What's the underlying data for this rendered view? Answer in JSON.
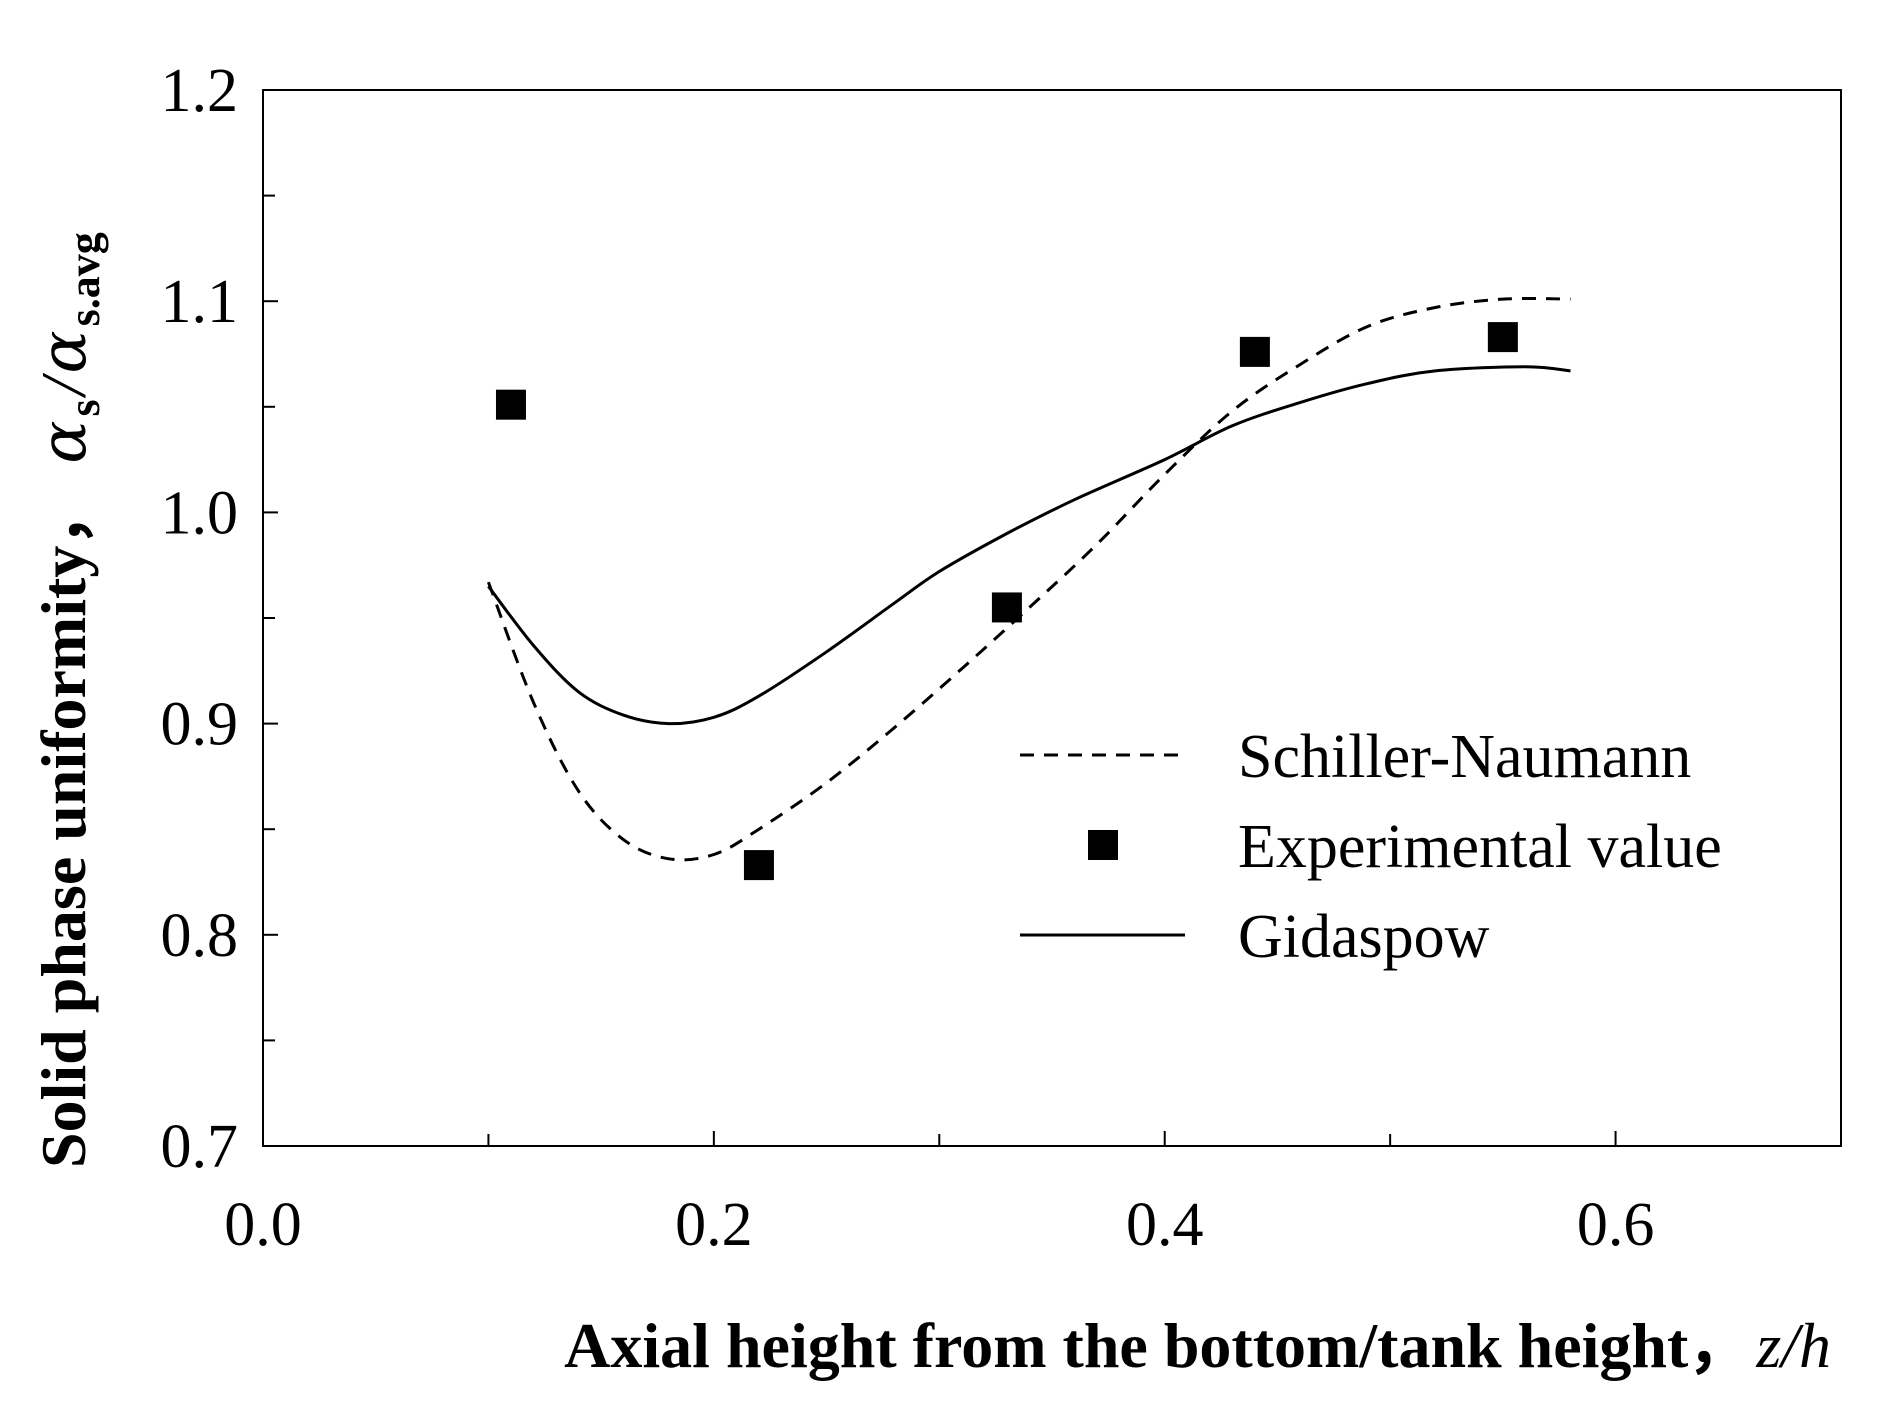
{
  "chart_data": {
    "type": "line",
    "xlabel": "Axial height from the bottom/tank height，",
    "xlabel_var": "z/h",
    "ylabel": "Solid phase uniformity，",
    "ylabel_var": {
      "alpha": "α",
      "s": "s",
      "slash": "/",
      "s_avg": "s.avg"
    },
    "xlim": [
      0.0,
      0.7
    ],
    "ylim": [
      0.7,
      1.2
    ],
    "x_ticks": [
      "0.0",
      "0.2",
      "0.4",
      "0.6"
    ],
    "x_tick_values": [
      0.0,
      0.2,
      0.4,
      0.6
    ],
    "x_minor_ticks": [
      0.1,
      0.3,
      0.5
    ],
    "y_ticks": [
      "0.7",
      "0.8",
      "0.9",
      "1.0",
      "1.1",
      "1.2"
    ],
    "y_tick_values": [
      0.7,
      0.8,
      0.9,
      1.0,
      1.1,
      1.2
    ],
    "y_minor_ticks": [
      0.75,
      0.85,
      0.95,
      1.05,
      1.15
    ],
    "legend_position": "center-right",
    "series": [
      {
        "name": "Schiller-Naumann",
        "style": "dashed",
        "x": [
          0.1,
          0.12,
          0.14,
          0.16,
          0.18,
          0.2,
          0.22,
          0.25,
          0.28,
          0.31,
          0.34,
          0.37,
          0.4,
          0.43,
          0.46,
          0.49,
          0.52,
          0.55,
          0.58
        ],
        "y": [
          0.967,
          0.91,
          0.868,
          0.845,
          0.836,
          0.838,
          0.85,
          0.872,
          0.898,
          0.926,
          0.955,
          0.985,
          1.018,
          1.048,
          1.07,
          1.088,
          1.097,
          1.101,
          1.101
        ]
      },
      {
        "name": "Experimental value",
        "style": "square-marker",
        "x": [
          0.11,
          0.22,
          0.33,
          0.44,
          0.55
        ],
        "y": [
          1.051,
          0.833,
          0.955,
          1.076,
          1.083
        ]
      },
      {
        "name": "Gidaspow",
        "style": "solid",
        "x": [
          0.1,
          0.12,
          0.14,
          0.16,
          0.18,
          0.2,
          0.22,
          0.25,
          0.28,
          0.3,
          0.33,
          0.36,
          0.4,
          0.43,
          0.46,
          0.49,
          0.52,
          0.56,
          0.58
        ],
        "y": [
          0.965,
          0.937,
          0.915,
          0.904,
          0.9,
          0.903,
          0.913,
          0.934,
          0.957,
          0.972,
          0.99,
          1.006,
          1.025,
          1.041,
          1.052,
          1.061,
          1.067,
          1.069,
          1.067
        ]
      }
    ]
  }
}
